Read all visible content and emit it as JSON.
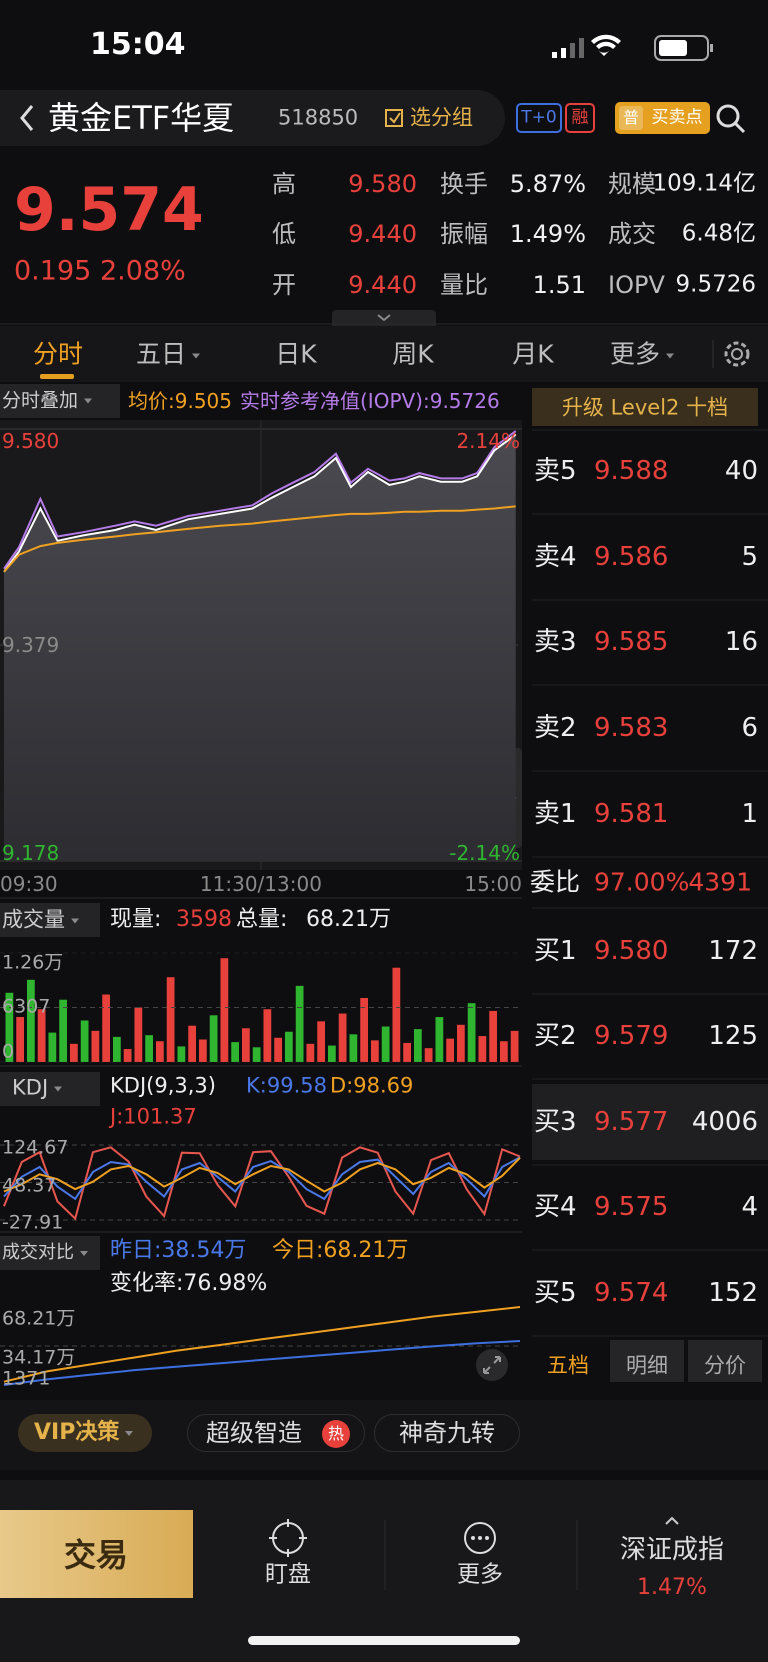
{
  "status_bar": {
    "time": "15:04"
  },
  "header": {
    "title": "黄金ETF华夏",
    "code": "518850",
    "group": "选分组",
    "t0": "T+0",
    "margin": "融",
    "signal_icon": "普",
    "signal": "买卖点"
  },
  "quote": {
    "price": "9.574",
    "change": "0.195",
    "change_pct": "2.08%",
    "stats": [
      [
        {
          "label": "高",
          "value": "9.580"
        },
        {
          "label": "换手",
          "value": "5.87%"
        },
        {
          "label": "规模",
          "value": "109.14亿"
        }
      ],
      [
        {
          "label": "低",
          "value": "9.440"
        },
        {
          "label": "振幅",
          "value": "1.49%"
        },
        {
          "label": "成交",
          "value": "6.48亿"
        }
      ],
      [
        {
          "label": "开",
          "value": "9.440"
        },
        {
          "label": "量比",
          "value": "1.51"
        },
        {
          "label": "IOPV",
          "value": "9.5726"
        }
      ]
    ]
  },
  "tabs": [
    "分时",
    "五日",
    "日K",
    "周K",
    "月K",
    "更多"
  ],
  "intraday": {
    "menu": "分时叠加",
    "avg_label": "均价:9.505",
    "iopv_label": "实时参考净值(IOPV):9.5726",
    "pct_top": "2.14%",
    "pct_bottom": "-2.14%",
    "xlim": [
      0,
      241
    ],
    "xticks": [
      {
        "value": 0,
        "label": "09:30"
      },
      {
        "value": 120,
        "label": "11:30/13:00"
      },
      {
        "value": 241,
        "label": "15:00"
      }
    ],
    "ylim": [
      9.178,
      9.58
    ],
    "yticks": [
      {
        "value": 9.58,
        "label": "9.580"
      },
      9.379,
      9.178
    ],
    "minutes": [
      0,
      7,
      17,
      25,
      37,
      52,
      61,
      71,
      86,
      101,
      116,
      125,
      135,
      145,
      155,
      162,
      170,
      180,
      187,
      194,
      204,
      214,
      221,
      229,
      239
    ],
    "series": [
      {
        "color": "#b57be8",
        "values": [
          9.45,
          9.47,
          9.515,
          9.48,
          9.484,
          9.49,
          9.494,
          9.49,
          9.499,
          9.504,
          9.509,
          9.52,
          9.53,
          9.54,
          9.557,
          9.53,
          9.543,
          9.532,
          9.534,
          9.539,
          9.534,
          9.534,
          9.539,
          9.563,
          9.578
        ]
      },
      {
        "color": "#ffffff",
        "values": [
          9.447,
          9.466,
          9.506,
          9.476,
          9.481,
          9.486,
          9.491,
          9.486,
          9.496,
          9.501,
          9.506,
          9.516,
          9.526,
          9.536,
          9.553,
          9.526,
          9.54,
          9.528,
          9.531,
          9.536,
          9.531,
          9.531,
          9.536,
          9.56,
          9.575
        ]
      },
      {
        "color": "#f0a020",
        "values": [
          9.447,
          9.463,
          9.471,
          9.474,
          9.477,
          9.48,
          9.482,
          9.484,
          9.487,
          9.49,
          9.492,
          9.494,
          9.496,
          9.498,
          9.5,
          9.501,
          9.501,
          9.502,
          9.503,
          9.503,
          9.504,
          9.504,
          9.505,
          9.506,
          9.508
        ]
      }
    ]
  },
  "volume": {
    "menu": "成交量",
    "current_label": "现量:",
    "current": 3598,
    "total_label": "总量:",
    "total": "68.21万",
    "ylim": [
      0,
      12600
    ],
    "yticks": [
      {
        "value": 12600,
        "label": "1.26万"
      },
      6307,
      0
    ],
    "values": [
      8000,
      5200,
      9500,
      6100,
      3400,
      7200,
      2100,
      4800,
      3600,
      7800,
      2900,
      1500,
      6300,
      3100,
      2400,
      9800,
      1800,
      4200,
      2600,
      5400,
      12000,
      2300,
      3900,
      1700,
      6100,
      2800,
      3500,
      8800,
      2100,
      4700,
      1900,
      5600,
      3200,
      7400,
      2500,
      4100,
      10900,
      2200,
      3800,
      1600,
      5200,
      2700,
      4300,
      6800,
      3000,
      5900,
      2400,
      3598
    ],
    "colors": [
      "#2fb52f",
      "#e8413c",
      "#2fb52f",
      "#e8413c",
      "#2fb52f",
      "#2fb52f",
      "#e8413c",
      "#2fb52f",
      "#e8413c",
      "#e8413c",
      "#2fb52f",
      "#e8413c",
      "#e8413c",
      "#2fb52f",
      "#e8413c",
      "#e8413c",
      "#2fb52f",
      "#e8413c",
      "#e8413c",
      "#2fb52f",
      "#e8413c",
      "#2fb52f",
      "#e8413c",
      "#2fb52f",
      "#e8413c",
      "#e8413c",
      "#2fb52f",
      "#2fb52f",
      "#e8413c",
      "#e8413c",
      "#2fb52f",
      "#e8413c",
      "#2fb52f",
      "#e8413c",
      "#e8413c",
      "#2fb52f",
      "#e8413c",
      "#e8413c",
      "#2fb52f",
      "#e8413c",
      "#2fb52f",
      "#e8413c",
      "#e8413c",
      "#2fb52f",
      "#e8413c",
      "#e8413c",
      "#e8413c",
      "#e8413c"
    ]
  },
  "kdj": {
    "menu": "KDJ",
    "params": "KDJ(9,3,3)",
    "k_label": "K:99.58",
    "d_label": "D:98.69",
    "j_label": "J:101.37",
    "ylim": [
      -27.91,
      124.67
    ],
    "yticks": [
      124.67,
      48.37,
      -27.91
    ],
    "series": [
      {
        "color": "#e8574f",
        "values": [
          0,
          90,
          110,
          10,
          -25,
          110,
          120,
          91,
          20,
          -20,
          109,
          108,
          44,
          0,
          110,
          112,
          60,
          1,
          -15,
          99,
          120,
          109,
          30,
          -15,
          94,
          108,
          35,
          -16,
          116,
          101.37
        ]
      },
      {
        "color": "#4a78e8",
        "values": [
          20,
          60,
          80,
          40,
          15,
          70,
          90,
          85,
          50,
          20,
          75,
          88,
          60,
          30,
          80,
          92,
          70,
          35,
          15,
          65,
          90,
          95,
          60,
          25,
          70,
          88,
          55,
          20,
          80,
          99.58
        ]
      },
      {
        "color": "#f0a020",
        "values": [
          30,
          45,
          65,
          55,
          35,
          50,
          75,
          82,
          65,
          40,
          58,
          78,
          68,
          45,
          65,
          82,
          75,
          52,
          30,
          48,
          75,
          88,
          75,
          45,
          58,
          78,
          65,
          38,
          62,
          98.69
        ]
      }
    ]
  },
  "compare": {
    "menu": "成交对比",
    "yesterday_label": "昨日:38.54万",
    "today_label": "今日:68.21万",
    "change_label": "变化率:76.98%",
    "ylim": [
      1371,
      682100
    ],
    "yticks": [
      {
        "value": 682100,
        "label": "68.21万"
      },
      {
        "value": 341700,
        "label": "34.17万"
      },
      1371
    ],
    "series": [
      {
        "color": "#3d6fe0",
        "values": [
          1371,
          50000,
          90000,
          130000,
          160000,
          190000,
          220000,
          250000,
          280000,
          310000,
          340000,
          365000,
          385400
        ]
      },
      {
        "color": "#f0a020",
        "values": [
          30000,
          120000,
          180000,
          240000,
          300000,
          350000,
          400000,
          450000,
          500000,
          550000,
          600000,
          640000,
          682100
        ]
      }
    ]
  },
  "order_book": {
    "upgrade": "升级 Level2 十档",
    "asks": [
      {
        "label": "卖5",
        "price": "9.588",
        "volume": 40
      },
      {
        "label": "卖4",
        "price": "9.586",
        "volume": 5
      },
      {
        "label": "卖3",
        "price": "9.585",
        "volume": 16
      },
      {
        "label": "卖2",
        "price": "9.583",
        "volume": 6
      },
      {
        "label": "卖1",
        "price": "9.581",
        "volume": 1
      }
    ],
    "ratio_label": "委比",
    "ratio": "97.00%",
    "ratio_volume": 4391,
    "bids": [
      {
        "label": "买1",
        "price": "9.580",
        "volume": 172
      },
      {
        "label": "买2",
        "price": "9.579",
        "volume": 125
      },
      {
        "label": "买3",
        "price": "9.577",
        "volume": 4006
      },
      {
        "label": "买4",
        "price": "9.575",
        "volume": 4
      },
      {
        "label": "买5",
        "price": "9.574",
        "volume": 152
      }
    ],
    "tabs": [
      "五档",
      "明细",
      "分价"
    ]
  },
  "toolbar": {
    "vip": "VIP决策",
    "smart": "超级智造",
    "hot": "热",
    "nine": "神奇九转"
  },
  "nav": {
    "trade": "交易",
    "watch": "盯盘",
    "more": "更多",
    "index_name": "深证成指",
    "index_change": "1.47%"
  }
}
